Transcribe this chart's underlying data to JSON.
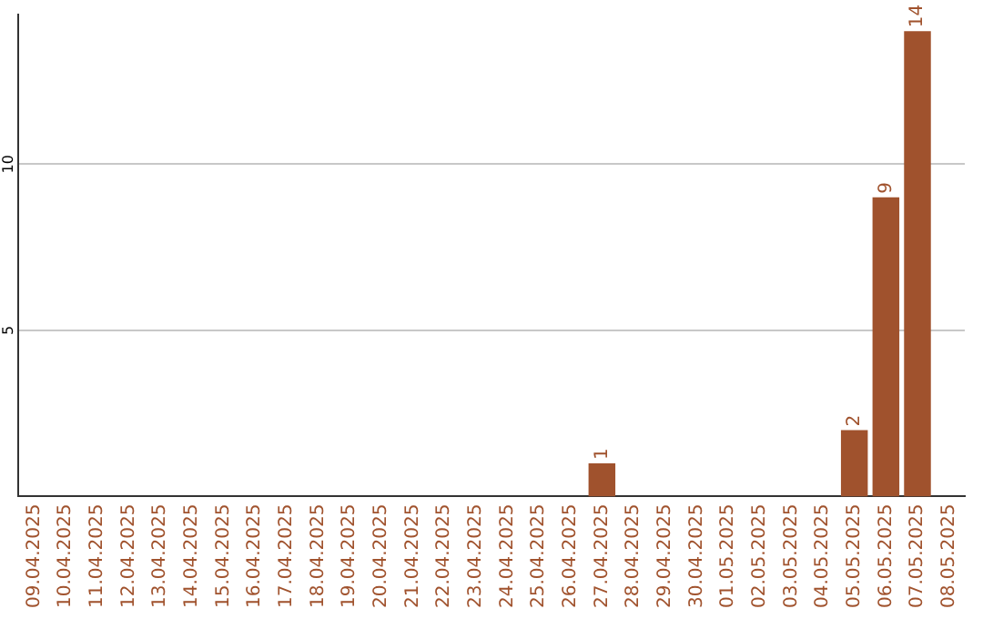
{
  "chart_data": {
    "type": "bar",
    "categories": [
      "09.04.2025",
      "10.04.2025",
      "11.04.2025",
      "12.04.2025",
      "13.04.2025",
      "14.04.2025",
      "15.04.2025",
      "16.04.2025",
      "17.04.2025",
      "18.04.2025",
      "19.04.2025",
      "20.04.2025",
      "21.04.2025",
      "22.04.2025",
      "23.04.2025",
      "24.04.2025",
      "25.04.2025",
      "26.04.2025",
      "27.04.2025",
      "28.04.2025",
      "29.04.2025",
      "30.04.2025",
      "01.05.2025",
      "02.05.2025",
      "03.05.2025",
      "04.05.2025",
      "05.05.2025",
      "06.05.2025",
      "07.05.2025",
      "08.05.2025"
    ],
    "values": [
      0,
      0,
      0,
      0,
      0,
      0,
      0,
      0,
      0,
      0,
      0,
      0,
      0,
      0,
      0,
      0,
      0,
      0,
      1,
      0,
      0,
      0,
      0,
      0,
      0,
      0,
      2,
      9,
      14,
      0
    ],
    "value_labels": [
      null,
      null,
      null,
      null,
      null,
      null,
      null,
      null,
      null,
      null,
      null,
      null,
      null,
      null,
      null,
      null,
      null,
      null,
      "1",
      null,
      null,
      null,
      null,
      null,
      null,
      null,
      "2",
      "9",
      "14",
      null
    ],
    "color": "#a0522d",
    "ylim": [
      0,
      14.5
    ],
    "yticks": [
      5,
      10
    ],
    "grid": "y"
  }
}
